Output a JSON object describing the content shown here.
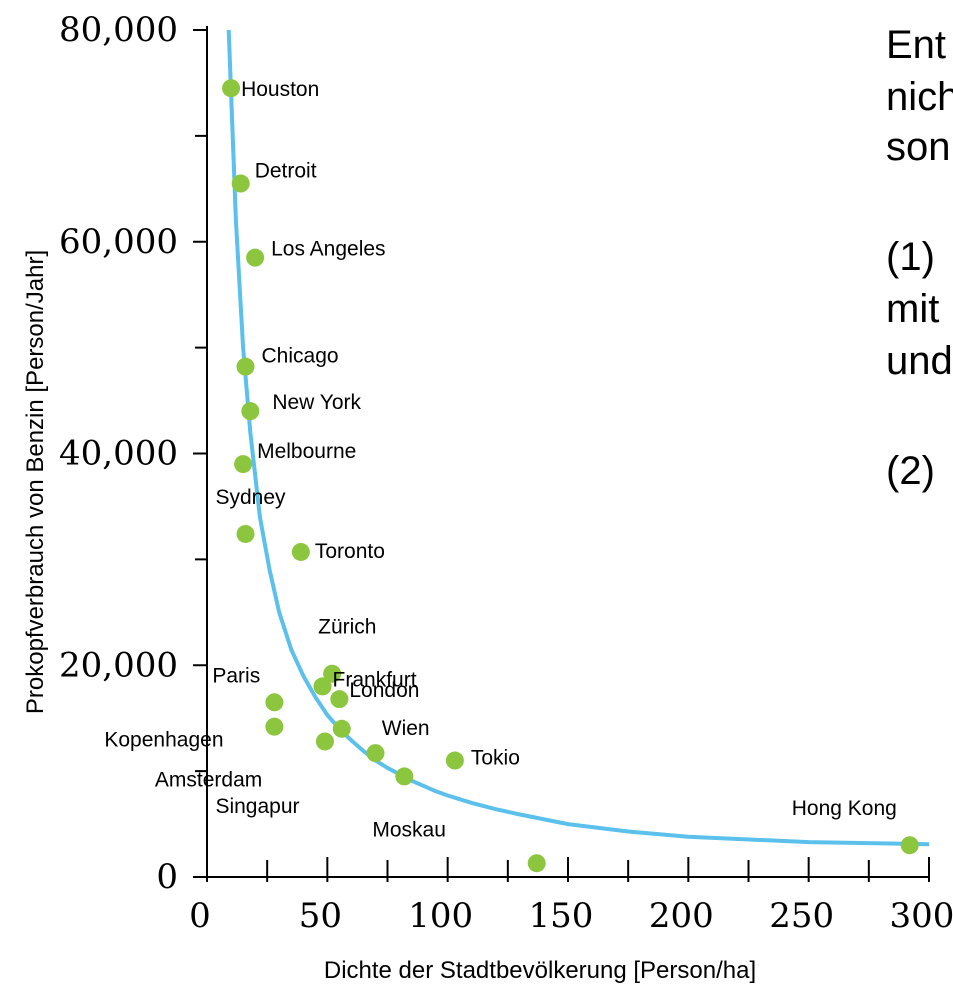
{
  "chart_data": {
    "type": "scatter",
    "xlabel": "Dichte der Stadtbevölkerung [Person/ha]",
    "ylabel": "Prokopfverbrauch von Benzin [Person/Jahr]",
    "xlim": [
      0,
      300
    ],
    "ylim": [
      0,
      80000
    ],
    "x_ticks": [
      0,
      50,
      100,
      150,
      200,
      250,
      300
    ],
    "x_tick_labels": [
      "0",
      "50",
      "100",
      "150",
      "200",
      "250",
      "300"
    ],
    "y_ticks": [
      0,
      20000,
      40000,
      60000,
      80000
    ],
    "y_tick_labels": [
      "0",
      "20,000",
      "40,000",
      "60,000",
      "80,000"
    ],
    "grid": false,
    "legend": "none",
    "point_color": "#8cc63f",
    "curve_color": "#5bc0eb",
    "trend_curve": {
      "x": [
        9,
        12,
        15,
        18,
        22,
        26,
        30,
        35,
        40,
        45,
        50,
        55,
        60,
        65,
        70,
        75,
        80,
        85,
        90,
        95,
        100,
        110,
        120,
        130,
        150,
        175,
        200,
        250,
        300
      ],
      "y": [
        80000,
        62000,
        50000,
        42000,
        34000,
        29000,
        25000,
        21500,
        19000,
        17000,
        15300,
        14000,
        12900,
        11900,
        11000,
        10300,
        9700,
        9100,
        8600,
        8100,
        7700,
        7000,
        6400,
        5900,
        5000,
        4300,
        3800,
        3300,
        3100
      ]
    },
    "points": [
      {
        "name": "Houston",
        "x": 10,
        "y": 74500
      },
      {
        "name": "Detroit",
        "x": 14,
        "y": 65500
      },
      {
        "name": "Los Angeles",
        "x": 20,
        "y": 58500
      },
      {
        "name": "Chicago",
        "x": 16,
        "y": 48200
      },
      {
        "name": "New York",
        "x": 18,
        "y": 44000
      },
      {
        "name": "Melbourne",
        "x": 15,
        "y": 39000
      },
      {
        "name": "Sydney",
        "x": 16,
        "y": 32400
      },
      {
        "name": "Toronto",
        "x": 39,
        "y": 30700
      },
      {
        "name": "Zürich",
        "x": 52,
        "y": 19200
      },
      {
        "name": "Frankfurt",
        "x": 48,
        "y": 18000
      },
      {
        "name": "Paris",
        "x": 28,
        "y": 16500
      },
      {
        "name": "London",
        "x": 55,
        "y": 16800
      },
      {
        "name": "Kopenhagen",
        "x": 28,
        "y": 14200
      },
      {
        "name": "Wien",
        "x": 56,
        "y": 14000
      },
      {
        "name": "Amsterdam",
        "x": 49,
        "y": 12800
      },
      {
        "name": "Tokio",
        "x": 103,
        "y": 11000
      },
      {
        "name": "Singapur",
        "x": 70,
        "y": 11700
      },
      {
        "name": "Moskau",
        "x": 82,
        "y": 9500
      },
      {
        "name": "Hong Kong",
        "x": 292,
        "y": 3000
      },
      {
        "name": "",
        "x": 137,
        "y": 1300
      }
    ],
    "side_text": [
      {
        "text": "Ent"
      },
      {
        "text": "nich"
      },
      {
        "text": "son"
      },
      {
        "text": "(1)"
      },
      {
        "text": "mit"
      },
      {
        "text": "und"
      },
      {
        "text": "(2)"
      }
    ]
  }
}
